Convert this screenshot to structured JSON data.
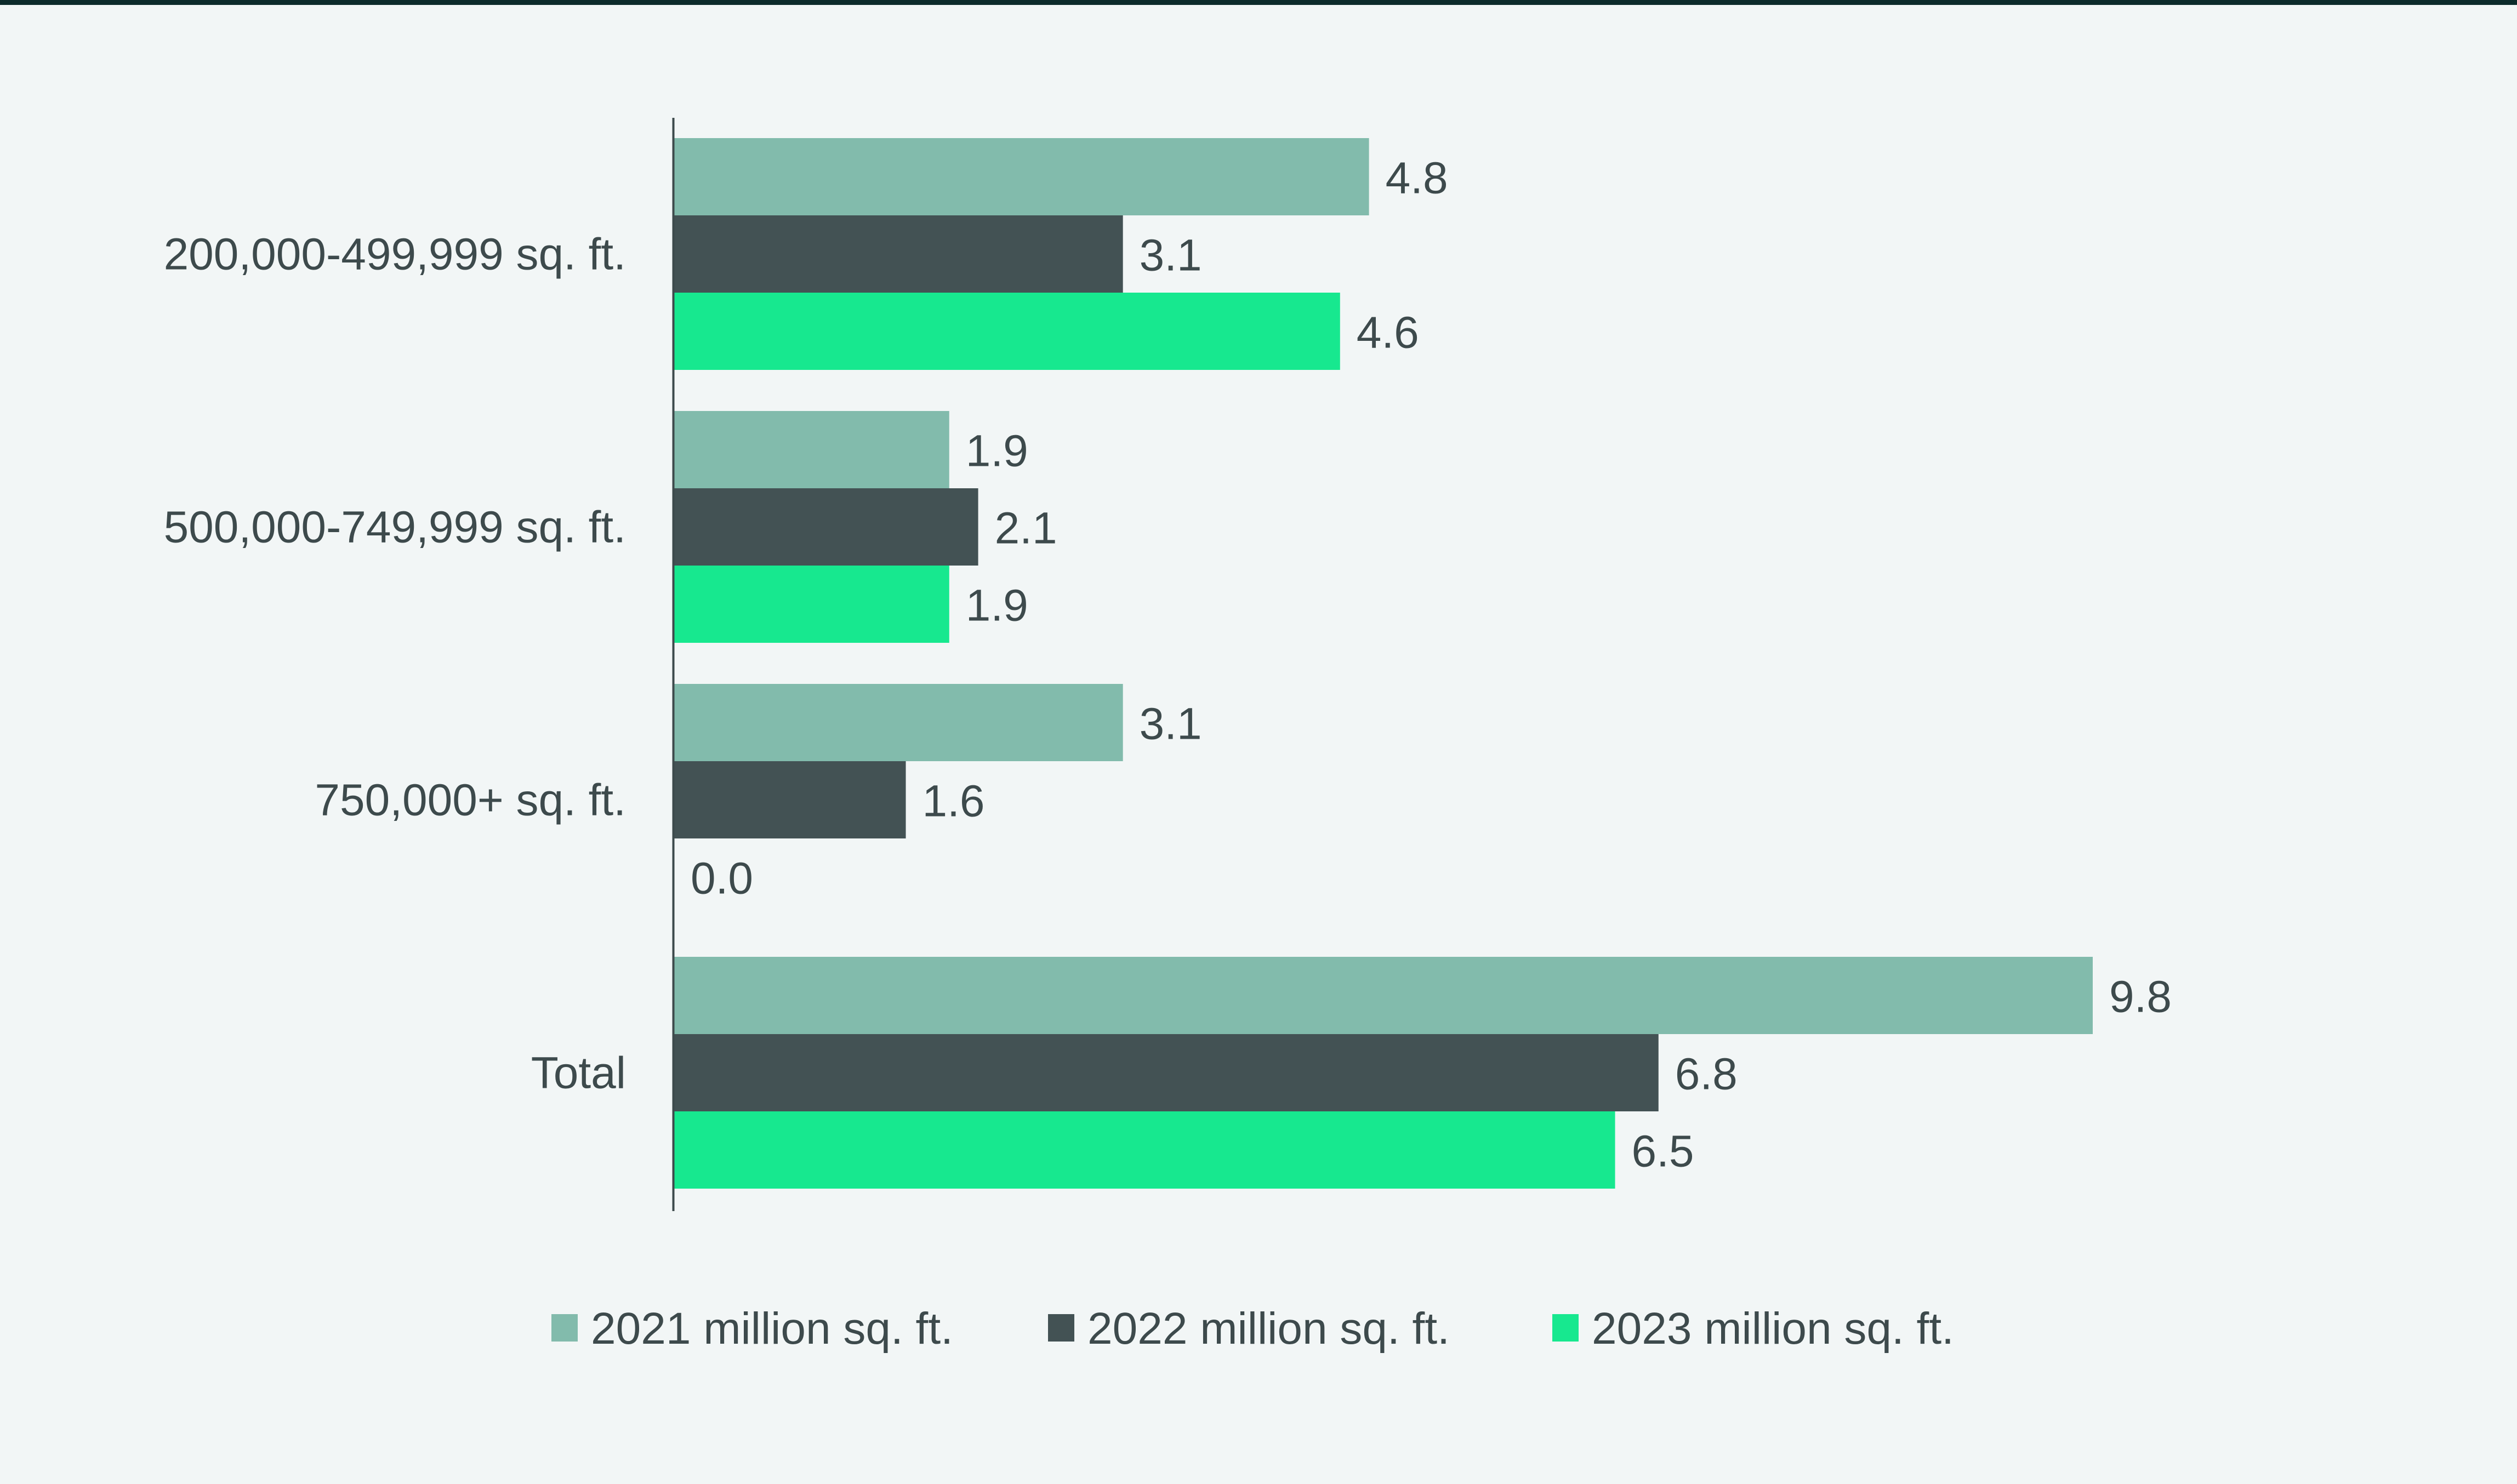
{
  "colors": {
    "background": "#f2f6f6",
    "top_rule": "#0d2b2b",
    "axis": "#3d4a4c",
    "text": "#3d4a4c"
  },
  "chart_data": {
    "type": "bar",
    "orientation": "horizontal",
    "title": "",
    "xlabel": "",
    "ylabel": "",
    "xlim": [
      0,
      10.5
    ],
    "grid": false,
    "legend_position": "bottom",
    "categories": [
      "200,000-499,999 sq. ft.",
      "500,000-749,999 sq. ft.",
      "750,000+ sq. ft.",
      "Total"
    ],
    "series": [
      {
        "name": "2021 million sq. ft.",
        "color": "#82bbac",
        "values": [
          4.8,
          1.9,
          3.1,
          9.8
        ],
        "labels": [
          "4.8",
          "1.9",
          "3.1",
          "9.8"
        ]
      },
      {
        "name": "2022 million sq. ft.",
        "color": "#435254",
        "values": [
          3.1,
          2.1,
          1.6,
          6.8
        ],
        "labels": [
          "3.1",
          "2.1",
          "1.6",
          "6.8"
        ]
      },
      {
        "name": "2023 million sq. ft.",
        "color": "#17e88f",
        "values": [
          4.6,
          1.9,
          0.0,
          6.5
        ],
        "labels": [
          "4.6",
          "1.9",
          "0.0",
          "6.5"
        ]
      }
    ]
  }
}
